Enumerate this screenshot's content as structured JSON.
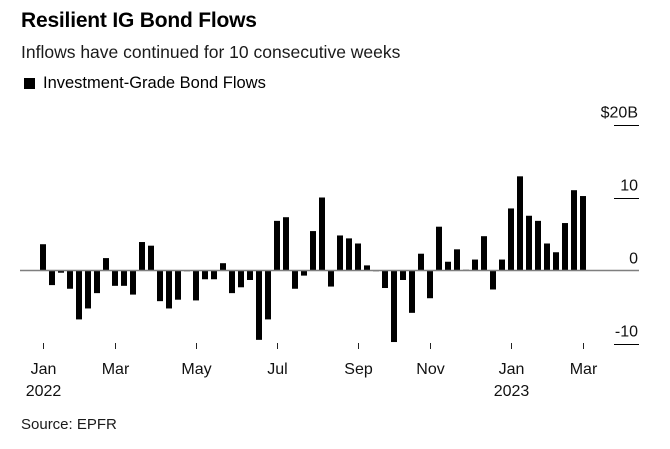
{
  "header": {
    "title": "Resilient IG Bond Flows",
    "subtitle": "Inflows have continued for 10 consecutive weeks",
    "legend_label": "Investment-Grade Bond Flows"
  },
  "footer": {
    "source": "Source: EPFR"
  },
  "colors": {
    "bar": "#000000",
    "baseline": "#7f7f7f",
    "gridtick": "#000000"
  },
  "chart_data": {
    "type": "bar",
    "title": "Resilient IG Bond Flows",
    "subtitle": "Inflows have continued for 10 consecutive weeks",
    "xlabel": "",
    "ylabel": "$B",
    "ylim": [
      -10,
      20
    ],
    "yticks": [
      {
        "value": 20,
        "label": "$20B"
      },
      {
        "value": 10,
        "label": "10"
      },
      {
        "value": 0,
        "label": "0"
      },
      {
        "value": -10,
        "label": "-10"
      }
    ],
    "x_frequency": "weekly",
    "x_start": "2022-01 week 1",
    "xticks": [
      {
        "index": 0,
        "label": "Jan",
        "sublabel": "2022"
      },
      {
        "index": 8,
        "label": "Mar",
        "sublabel": ""
      },
      {
        "index": 17,
        "label": "May",
        "sublabel": ""
      },
      {
        "index": 26,
        "label": "Jul",
        "sublabel": ""
      },
      {
        "index": 35,
        "label": "Sep",
        "sublabel": ""
      },
      {
        "index": 43,
        "label": "Nov",
        "sublabel": ""
      },
      {
        "index": 52,
        "label": "Jan",
        "sublabel": "2023"
      },
      {
        "index": 60,
        "label": "Mar",
        "sublabel": ""
      }
    ],
    "legend": [
      {
        "name": "Investment-Grade Bond Flows",
        "color": "#000000"
      }
    ],
    "legend_position": "top-left",
    "grid": false,
    "series": [
      {
        "name": "Investment-Grade Bond Flows",
        "values": [
          3.6,
          -2.0,
          -0.3,
          -2.5,
          -6.7,
          -5.2,
          -3.1,
          1.7,
          -2.1,
          -2.1,
          -3.3,
          3.9,
          3.4,
          -4.2,
          -5.2,
          -4.0,
          -0.1,
          -4.1,
          -1.2,
          -1.2,
          1.0,
          -3.1,
          -2.3,
          -1.3,
          -9.5,
          -6.7,
          6.8,
          7.3,
          -2.5,
          -0.7,
          5.4,
          10.0,
          -2.2,
          4.8,
          4.4,
          3.7,
          0.7,
          -0.1,
          -2.4,
          -9.8,
          -1.3,
          -5.8,
          2.3,
          -3.8,
          6.0,
          1.2,
          2.9,
          0.1,
          1.5,
          4.7,
          -2.6,
          1.5,
          8.5,
          12.9,
          7.5,
          6.8,
          3.7,
          2.5,
          6.5,
          11.0,
          10.2
        ]
      }
    ]
  }
}
